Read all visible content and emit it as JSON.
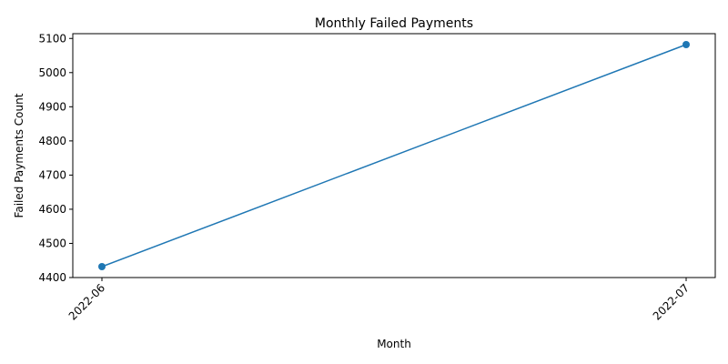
{
  "chart_data": {
    "type": "line",
    "title": "Monthly Failed Payments",
    "xlabel": "Month",
    "ylabel": "Failed Payments Count",
    "categories": [
      "2022-06",
      "2022-07"
    ],
    "series": [
      {
        "values": [
          4432,
          5082
        ],
        "color": "#1f77b4",
        "marker": "circle"
      }
    ],
    "yticks": [
      4400,
      4500,
      4600,
      4700,
      4800,
      4900,
      5000,
      5100
    ],
    "ylim": [
      4400,
      5114
    ],
    "grid": false,
    "legend": "none"
  }
}
